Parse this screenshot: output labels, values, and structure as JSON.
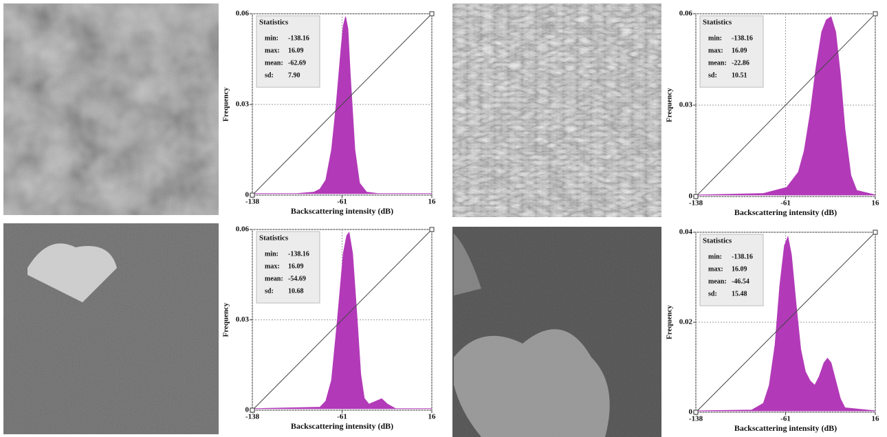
{
  "chart_data": [
    {
      "type": "area",
      "x_label": "Backscattering intensity (dB)",
      "y_label": "Frequency",
      "color": "#b23ab8",
      "xlim": [
        -138,
        16
      ],
      "xticks": [
        -138,
        -61,
        16
      ],
      "ylim": [
        0,
        0.06
      ],
      "yticks": [
        0,
        0.03,
        0.06
      ],
      "grid": true,
      "x": [
        -138,
        -100,
        -85,
        -80,
        -75,
        -70,
        -66,
        -62,
        -60,
        -58,
        -56,
        -54,
        -50,
        -46,
        -40,
        -30,
        16
      ],
      "values": [
        0.0005,
        0.0005,
        0.001,
        0.002,
        0.005,
        0.015,
        0.03,
        0.048,
        0.056,
        0.059,
        0.055,
        0.04,
        0.015,
        0.004,
        0.001,
        0.0005,
        0.0005
      ],
      "statistics": {
        "title": "Statistics",
        "rows": [
          [
            "min:",
            "-138.16"
          ],
          [
            "max:",
            "16.09"
          ],
          [
            "mean:",
            "-62.69"
          ],
          [
            "sd:",
            "7.90"
          ]
        ]
      }
    },
    {
      "type": "area",
      "x_label": "Backscattering intensity (dB)",
      "y_label": "Frequency",
      "color": "#b23ab8",
      "xlim": [
        -138,
        16
      ],
      "xticks": [
        -138,
        -61,
        16
      ],
      "ylim": [
        0,
        0.06
      ],
      "yticks": [
        0,
        0.03,
        0.06
      ],
      "grid": true,
      "x": [
        -138,
        -80,
        -60,
        -50,
        -45,
        -40,
        -35,
        -30,
        -26,
        -22,
        -18,
        -14,
        -10,
        -5,
        0,
        16
      ],
      "values": [
        0.0005,
        0.001,
        0.003,
        0.008,
        0.015,
        0.027,
        0.042,
        0.054,
        0.058,
        0.059,
        0.054,
        0.04,
        0.022,
        0.007,
        0.002,
        0.0005
      ],
      "statistics": {
        "title": "Statistics",
        "rows": [
          [
            "min:",
            "-138.16"
          ],
          [
            "max:",
            "16.09"
          ],
          [
            "mean:",
            "-22.86"
          ],
          [
            "sd:",
            "10.51"
          ]
        ]
      }
    },
    {
      "type": "area",
      "x_label": "Backscattering intensity (dB)",
      "y_label": "Frequency",
      "color": "#b23ab8",
      "xlim": [
        -138,
        16
      ],
      "xticks": [
        -138,
        -61,
        16
      ],
      "ylim": [
        0,
        0.06
      ],
      "yticks": [
        0,
        0.03,
        0.06
      ],
      "grid": true,
      "x": [
        -138,
        -80,
        -75,
        -70,
        -65,
        -60,
        -57,
        -55,
        -52,
        -48,
        -45,
        -42,
        -38,
        -32,
        -27,
        -22,
        -15,
        16
      ],
      "values": [
        0.0005,
        0.001,
        0.003,
        0.01,
        0.03,
        0.052,
        0.058,
        0.059,
        0.052,
        0.03,
        0.012,
        0.004,
        0.002,
        0.003,
        0.0038,
        0.002,
        0.0005,
        0.0005
      ],
      "statistics": {
        "title": "Statistics",
        "rows": [
          [
            "min:",
            "-138.16"
          ],
          [
            "max:",
            "16.09"
          ],
          [
            "mean:",
            "-54.69"
          ],
          [
            "sd:",
            "10.68"
          ]
        ]
      }
    },
    {
      "type": "area",
      "x_label": "Backscattering intensity (dB)",
      "y_label": "Frequency",
      "color": "#b23ab8",
      "xlim": [
        -138,
        16
      ],
      "xticks": [
        -138,
        -61,
        16
      ],
      "ylim": [
        0,
        0.04
      ],
      "yticks": [
        0,
        0.02,
        0.04
      ],
      "grid": true,
      "x": [
        -138,
        -90,
        -80,
        -75,
        -70,
        -66,
        -62,
        -59,
        -56,
        -52,
        -48,
        -44,
        -40,
        -36,
        -32,
        -28,
        -25,
        -22,
        -18,
        -14,
        -10,
        16
      ],
      "values": [
        0.0003,
        0.0005,
        0.002,
        0.006,
        0.015,
        0.028,
        0.037,
        0.039,
        0.035,
        0.024,
        0.014,
        0.009,
        0.007,
        0.006,
        0.008,
        0.011,
        0.012,
        0.011,
        0.007,
        0.003,
        0.001,
        0.0003
      ],
      "statistics": {
        "title": "Statistics",
        "rows": [
          [
            "min:",
            "-138.16"
          ],
          [
            "max:",
            "16.09"
          ],
          [
            "mean:",
            "-46.54"
          ],
          [
            "sd:",
            "15.48"
          ]
        ]
      }
    }
  ]
}
